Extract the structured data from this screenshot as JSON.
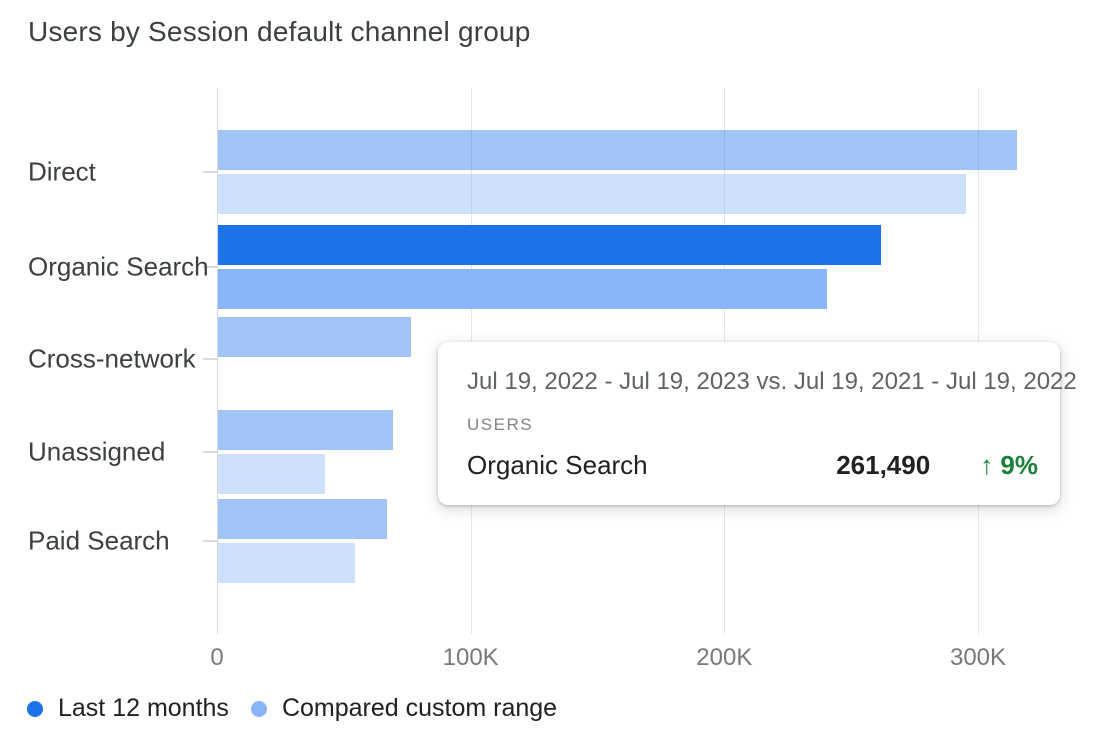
{
  "title": "Users by Session default channel group",
  "chart_data": {
    "type": "bar",
    "orientation": "horizontal",
    "title": "Users by Session default channel group",
    "categories": [
      "Direct",
      "Organic Search",
      "Cross-network",
      "Unassigned",
      "Paid Search"
    ],
    "series": [
      {
        "name": "Last 12 months",
        "color": "#1a73e8",
        "values": [
          315000,
          261490,
          76000,
          69000,
          66500
        ]
      },
      {
        "name": "Compared custom range",
        "color": "#8ab4f8",
        "values": [
          295000,
          239900,
          0,
          42000,
          54000
        ]
      }
    ],
    "x_ticks": [
      "0",
      "100K",
      "200K",
      "300K"
    ],
    "x_tick_values": [
      0,
      100000,
      200000,
      300000
    ],
    "xlim": [
      0,
      340000
    ],
    "grid": true,
    "legend_position": "bottom",
    "highlighted_category": "Organic Search",
    "faded_opacity": 0.42
  },
  "tooltip": {
    "date_range": "Jul 19, 2022 - Jul 19, 2023 vs. Jul 19, 2021 - Jul 19, 2022",
    "metric_label": "USERS",
    "row_name": "Organic Search",
    "row_value": "261,490",
    "change_arrow": "↑",
    "change_percent": "9%",
    "change_direction": "up",
    "change_color": "#188038"
  },
  "legend": [
    {
      "label": "Last 12 months",
      "color": "#1a73e8"
    },
    {
      "label": "Compared custom range",
      "color": "#8ab4f8"
    }
  ],
  "colors": {
    "series_current": "#1a73e8",
    "series_compared": "#8ab4f8",
    "gridline": "#e4e7ea",
    "axis_text": "#76797e",
    "title_text": "#3c4043"
  }
}
